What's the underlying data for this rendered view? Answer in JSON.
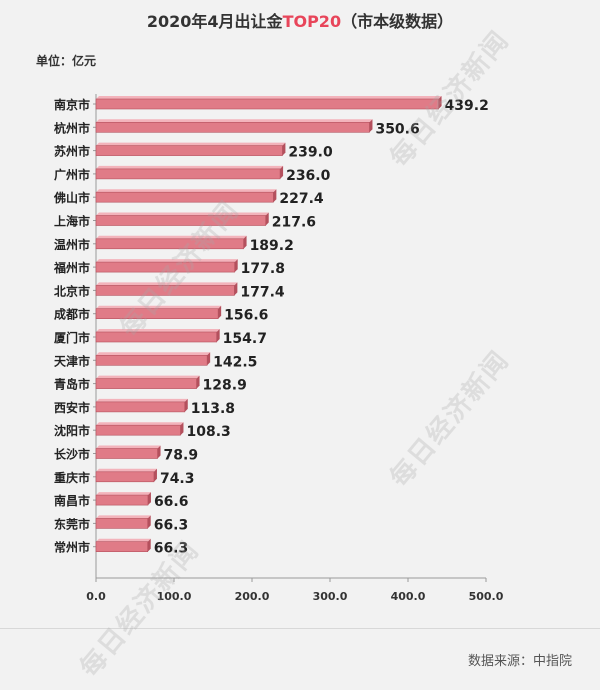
{
  "header": {
    "title_part1": "2020年4月出让金",
    "title_highlight": "TOP20",
    "title_part2": "（市本级数据）",
    "unit": "单位：亿元"
  },
  "footer": {
    "source": "数据来源：中指院"
  },
  "watermark": "每日经济新闻",
  "colors": {
    "bar": "#e07b87",
    "bar_top": "#f3b3bb",
    "bar_edge": "#b4505d",
    "highlight": "#e8455a"
  },
  "chart_data": {
    "type": "bar",
    "orientation": "horizontal",
    "categories": [
      "南京市",
      "杭州市",
      "苏州市",
      "广州市",
      "佛山市",
      "上海市",
      "温州市",
      "福州市",
      "北京市",
      "成都市",
      "厦门市",
      "天津市",
      "青岛市",
      "西安市",
      "沈阳市",
      "长沙市",
      "重庆市",
      "南昌市",
      "东莞市",
      "常州市"
    ],
    "values": [
      439.2,
      350.6,
      239.0,
      236.0,
      227.4,
      217.6,
      189.2,
      177.8,
      177.4,
      156.6,
      154.7,
      142.5,
      128.9,
      113.8,
      108.3,
      78.9,
      74.3,
      66.6,
      66.3,
      66.3
    ],
    "value_labels": [
      "439.2",
      "350.6",
      "239.0",
      "236.0",
      "227.4",
      "217.6",
      "189.2",
      "177.8",
      "177.4",
      "156.6",
      "154.7",
      "142.5",
      "128.9",
      "113.8",
      "108.3",
      "78.9",
      "74.3",
      "66.6",
      "66.3",
      "66.3"
    ],
    "xlim": [
      0,
      500
    ],
    "xticks": [
      "0.0",
      "100.0",
      "200.0",
      "300.0",
      "400.0",
      "500.0"
    ],
    "grid": false
  }
}
